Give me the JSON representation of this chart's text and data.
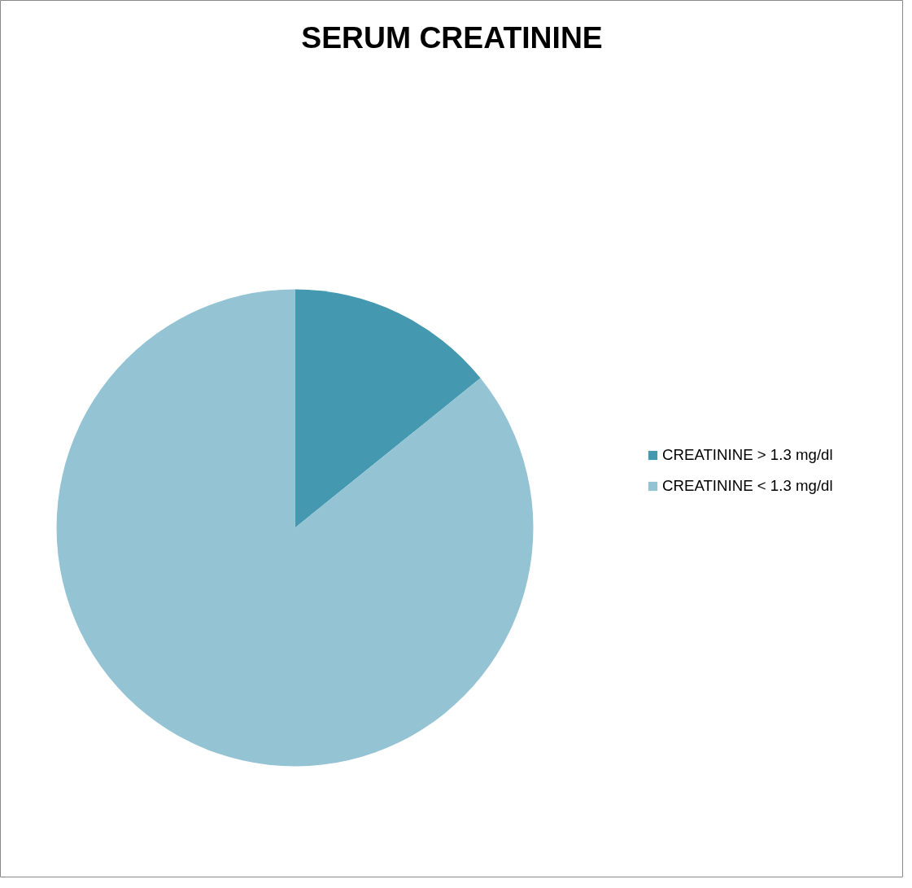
{
  "chart_data": {
    "type": "pie",
    "title": "SERUM CREATININE",
    "categories": [
      "CREATININE > 1.3 mg/dl",
      "CREATININE < 1.3 mg/dl"
    ],
    "values": [
      14.2,
      85.8
    ],
    "colors": [
      "#4499b0",
      "#94c3d4"
    ],
    "legend": "right"
  }
}
